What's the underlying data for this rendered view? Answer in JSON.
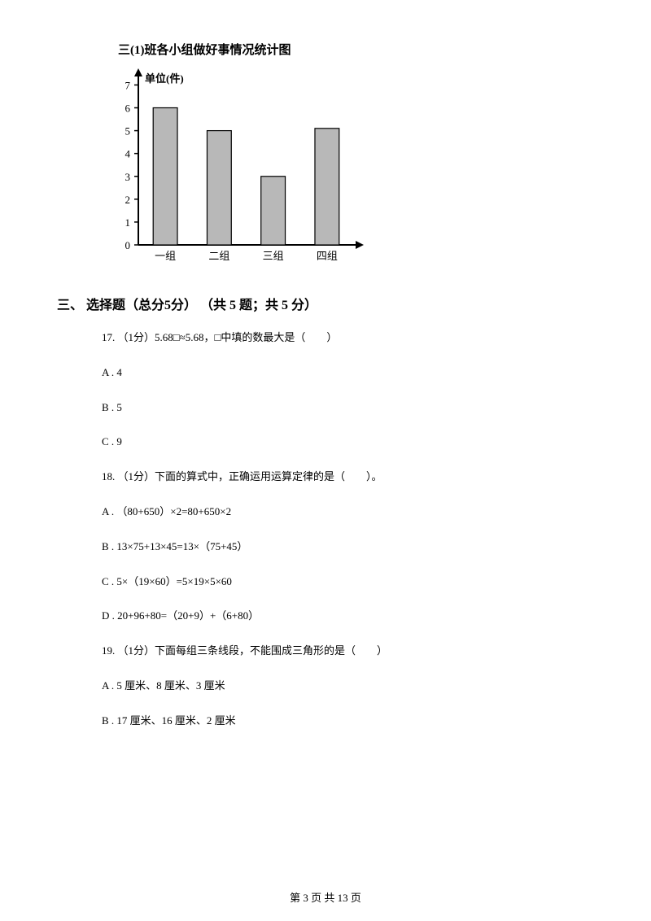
{
  "chart": {
    "title": "三(1)班各小组做好事情况统计图",
    "ylabel": "单位(件)",
    "type": "bar",
    "categories": [
      "一组",
      "二组",
      "三组",
      "四组"
    ],
    "values": [
      6,
      5,
      3,
      5.1
    ],
    "yticks": [
      0,
      1,
      2,
      3,
      4,
      5,
      6,
      7
    ],
    "ylim_max": 7.3,
    "bar_fill": "#b8b8b8",
    "bar_stroke": "#000000",
    "axis_color": "#000000",
    "tick_fontsize": 13,
    "title_fontsize": 15,
    "bar_width_ratio": 0.45
  },
  "section": {
    "heading": "三、 选择题（总分5分） （共 5 题；共 5 分）"
  },
  "q17": {
    "stem": "17. （1分）5.68□≈5.68，□中填的数最大是（　　）",
    "opts": [
      "A . 4",
      "B . 5",
      "C . 9"
    ]
  },
  "q18": {
    "stem": "18. （1分）下面的算式中，正确运用运算定律的是（　　）。",
    "opts": [
      "A . （80+650）×2=80+650×2",
      "B . 13×75+13×45=13×（75+45）",
      "C . 5×（19×60）=5×19×5×60",
      "D . 20+96+80=（20+9）+（6+80）"
    ]
  },
  "q19": {
    "stem": "19. （1分）下面每组三条线段，不能围成三角形的是（　　）",
    "opts": [
      "A . 5 厘米、8 厘米、3 厘米",
      "B . 17 厘米、16 厘米、2 厘米"
    ]
  },
  "footer": {
    "text": "第 3 页 共 13 页"
  }
}
